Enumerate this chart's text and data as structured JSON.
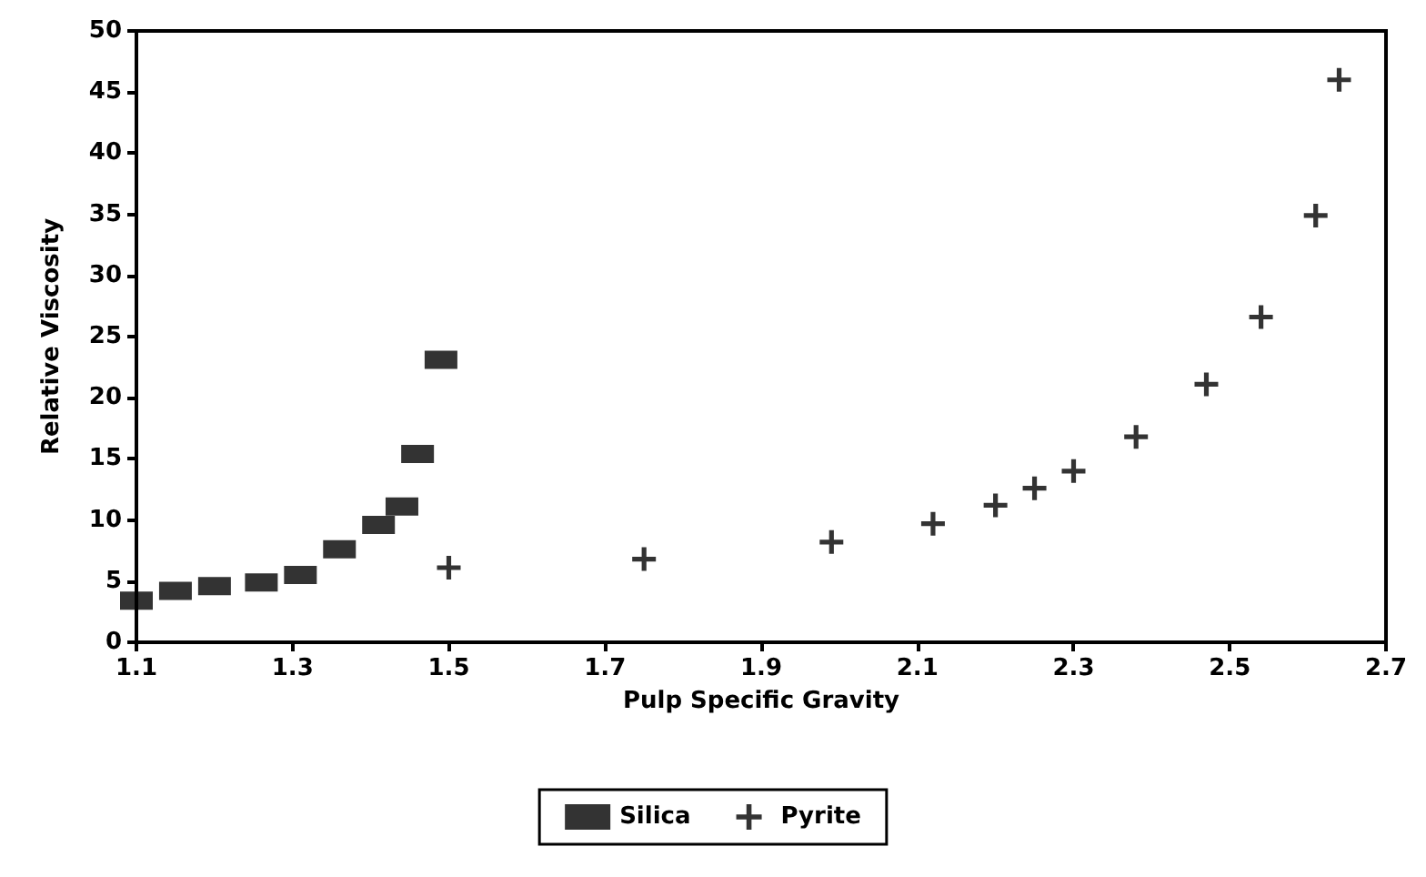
{
  "chart_data": {
    "type": "scatter",
    "xlabel": "Pulp Specific Gravity",
    "ylabel": "Relative Viscosity",
    "xlim": [
      1.1,
      2.7
    ],
    "xticks": [
      {
        "value": 1.1,
        "label": "1.1"
      },
      {
        "value": 1.3,
        "label": "1.3"
      },
      {
        "value": 1.5,
        "label": "1.5"
      },
      {
        "value": 1.7,
        "label": "1.7"
      },
      {
        "value": 1.9,
        "label": "1.9"
      },
      {
        "value": 2.1,
        "label": "2.1"
      },
      {
        "value": 2.3,
        "label": "2.3"
      },
      {
        "value": 2.5,
        "label": "2.5"
      },
      {
        "value": 2.7,
        "label": "2.7"
      }
    ],
    "ylim": [
      0,
      50
    ],
    "yticks": [
      0,
      5,
      10,
      15,
      20,
      25,
      30,
      35,
      40,
      45,
      50
    ],
    "grid": false,
    "legend": "bottom",
    "series": [
      {
        "name": "Silica",
        "color": "#000000",
        "marker": "square",
        "x": [
          1.1,
          1.15,
          1.2,
          1.26,
          1.31,
          1.36,
          1.41,
          1.44,
          1.46,
          1.49
        ],
        "values": [
          3.4,
          4.2,
          4.6,
          4.9,
          5.5,
          7.6,
          9.6,
          11.1,
          15.4,
          23.1
        ]
      },
      {
        "name": "Pyrite",
        "color": "#000000",
        "marker": "cross",
        "x": [
          1.5,
          1.75,
          1.99,
          2.12,
          2.2,
          2.25,
          2.3,
          2.38,
          2.47,
          2.54,
          2.61,
          2.64
        ],
        "values": [
          6.1,
          6.8,
          8.2,
          9.7,
          11.2,
          12.6,
          14.0,
          16.8,
          21.1,
          26.6,
          34.9,
          46.0
        ]
      }
    ]
  }
}
